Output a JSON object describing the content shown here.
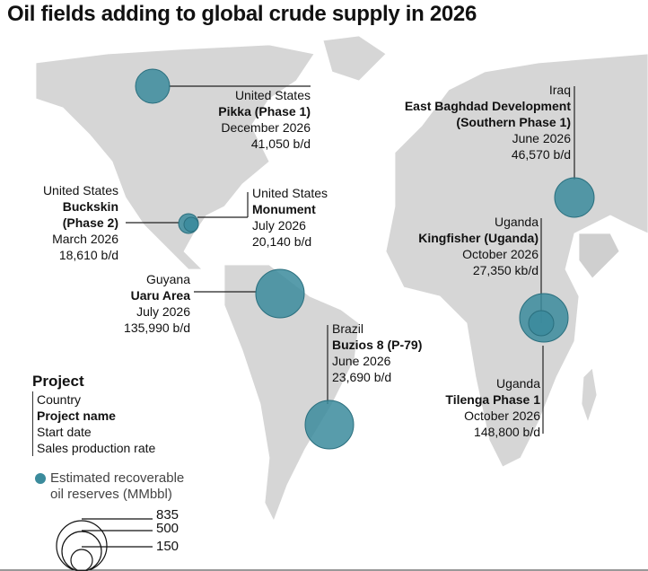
{
  "title": "Oil fields adding to global crude supply in 2026",
  "colors": {
    "bubble": "#3b8b9c",
    "land": "#d6d6d6"
  },
  "projects": [
    {
      "country": "United States",
      "name": "Pikka (Phase 1)",
      "date": "December 2026",
      "rate": "41,050 b/d"
    },
    {
      "country": "United States",
      "name": "Buckskin",
      "name2": "(Phase 2)",
      "date": "March 2026",
      "rate": "18,610 b/d"
    },
    {
      "country": "United States",
      "name": "Monument",
      "date": "July 2026",
      "rate": "20,140 b/d"
    },
    {
      "country": "Guyana",
      "name": "Uaru Area",
      "date": "July 2026",
      "rate": "135,990 b/d"
    },
    {
      "country": "Brazil",
      "name": "Buzios 8 (P-79)",
      "date": "June 2026",
      "rate": "23,690 b/d"
    },
    {
      "country": "Iraq",
      "name": "East Baghdad Development",
      "name2": "(Southern Phase 1)",
      "date": "June 2026",
      "rate": "46,570 b/d"
    },
    {
      "country": "Uganda",
      "name": "Kingfisher (Uganda)",
      "date": "October 2026",
      "rate": "27,350 kb/d"
    },
    {
      "country": "Uganda",
      "name": "Tilenga Phase 1",
      "date": "October 2026",
      "rate": "148,800 b/d"
    }
  ],
  "legend": {
    "heading": "Project",
    "items": [
      "Country",
      "Project name",
      "Start date",
      "Sales production rate"
    ],
    "bubble_label1": "Estimated recoverable",
    "bubble_label2": "oil reserves (MMbbl)",
    "sizes": [
      "835",
      "500",
      "150"
    ]
  }
}
